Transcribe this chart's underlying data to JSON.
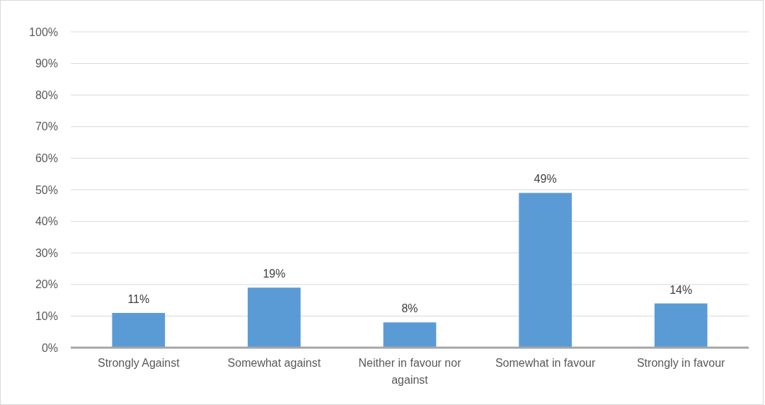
{
  "chart_data": {
    "type": "bar",
    "categories": [
      "Strongly Against",
      "Somewhat against",
      "Neither in favour nor against",
      "Somewhat in favour",
      "Strongly in favour"
    ],
    "values": [
      11,
      19,
      8,
      49,
      14
    ],
    "color": "#5b9bd5",
    "ylim": [
      0,
      100
    ],
    "yticks": [
      {
        "value": 0,
        "label": "0%"
      },
      {
        "value": 10,
        "label": "10%"
      },
      {
        "value": 20,
        "label": "20%"
      },
      {
        "value": 30,
        "label": "30%"
      },
      {
        "value": 40,
        "label": "40%"
      },
      {
        "value": 50,
        "label": "50%"
      },
      {
        "value": 60,
        "label": "60%"
      },
      {
        "value": 70,
        "label": "70%"
      },
      {
        "value": 80,
        "label": "80%"
      },
      {
        "value": 90,
        "label": "90%"
      },
      {
        "value": 100,
        "label": "100%"
      }
    ],
    "value_labels": [
      "11%",
      "19%",
      "8%",
      "49%",
      "14%"
    ],
    "grid": "y"
  }
}
